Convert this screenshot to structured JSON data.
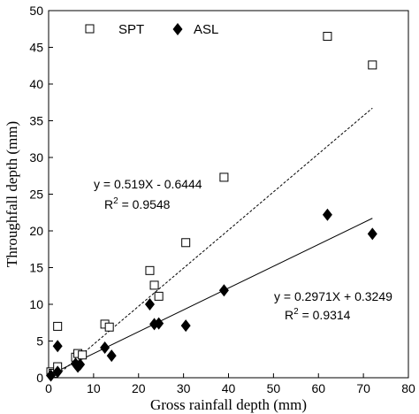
{
  "chart_data": {
    "type": "scatter",
    "xlabel": "Gross rainfall depth (mm)",
    "ylabel": "Throughfall depth (mm)",
    "xlim": [
      0,
      80
    ],
    "ylim": [
      0,
      50
    ],
    "xticks": [
      0,
      10,
      20,
      30,
      40,
      50,
      60,
      70,
      80
    ],
    "yticks": [
      0,
      5,
      10,
      15,
      20,
      25,
      30,
      35,
      40,
      45,
      50
    ],
    "grid": false,
    "legend_position": "top-left",
    "series": [
      {
        "name": "SPT",
        "marker": "open-square",
        "color": "#000000",
        "points": [
          [
            0.5,
            0.8
          ],
          [
            1.0,
            0.6
          ],
          [
            2.0,
            7.0
          ],
          [
            2.0,
            1.5
          ],
          [
            6.0,
            2.8
          ],
          [
            6.5,
            3.3
          ],
          [
            7.5,
            3.1
          ],
          [
            12.5,
            7.3
          ],
          [
            13.5,
            6.9
          ],
          [
            22.5,
            14.6
          ],
          [
            23.5,
            12.6
          ],
          [
            24.5,
            11.1
          ],
          [
            30.5,
            18.4
          ],
          [
            39.0,
            27.3
          ],
          [
            62.0,
            46.5
          ],
          [
            72.0,
            42.6
          ]
        ],
        "fit": {
          "slope": 0.519,
          "intercept": -0.6444,
          "line_style": "dashed",
          "equation": "y = 0.519X - 0.6444",
          "r2_label": "R",
          "r2_exp": "2",
          "r2_value": " = 0.9548"
        }
      },
      {
        "name": "ASL",
        "marker": "filled-diamond",
        "color": "#000000",
        "points": [
          [
            0.5,
            0.3
          ],
          [
            2.0,
            4.3
          ],
          [
            2.0,
            0.8
          ],
          [
            6.0,
            1.9
          ],
          [
            6.5,
            1.5
          ],
          [
            7.0,
            1.8
          ],
          [
            12.5,
            4.1
          ],
          [
            14.0,
            3.0
          ],
          [
            22.5,
            10.0
          ],
          [
            23.5,
            7.3
          ],
          [
            24.5,
            7.4
          ],
          [
            30.5,
            7.1
          ],
          [
            39.0,
            11.9
          ],
          [
            62.0,
            22.2
          ],
          [
            72.0,
            19.6
          ]
        ],
        "fit": {
          "slope": 0.2971,
          "intercept": 0.3249,
          "line_style": "solid",
          "equation": "y = 0.2971X + 0.3249",
          "r2_label": "R",
          "r2_exp": "2",
          "r2_value": " = 0.9314"
        }
      }
    ]
  }
}
